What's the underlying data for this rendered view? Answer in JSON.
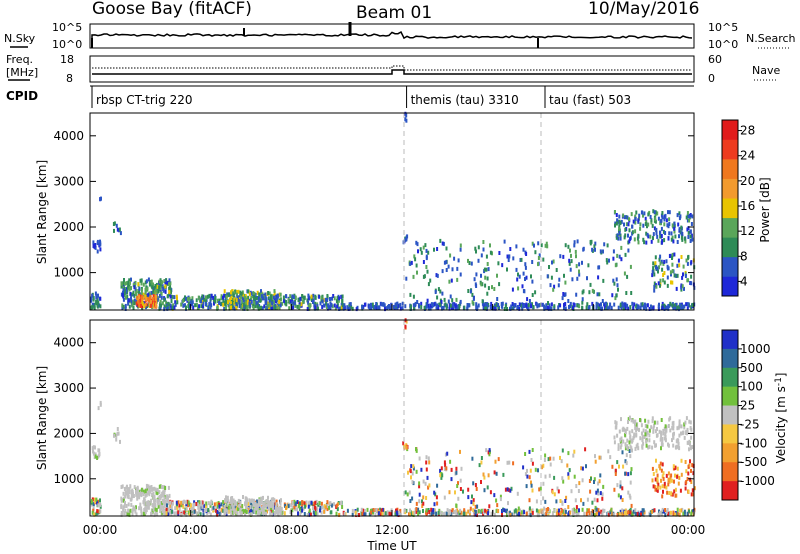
{
  "header": {
    "station": "Goose Bay (fitACF)",
    "beam": "Beam 01",
    "date": "10/May/2016"
  },
  "strip_labels": {
    "nsky": "N.Sky",
    "nsearch": "N.Search",
    "freq_line1": "Freq.",
    "freq_line2": "[MHz]",
    "nave": "Nave",
    "cpid": "CPID"
  },
  "strip_ticks": {
    "noise_left": [
      "10^5",
      "10^0"
    ],
    "noise_right": [
      "10^5",
      "10^0"
    ],
    "freq_left": [
      "18",
      "8"
    ],
    "freq_right": [
      "60",
      "0"
    ]
  },
  "cpid_segments": [
    {
      "label": "rbsp CT-trig 220",
      "start_hour": 0.0
    },
    {
      "label": "themis (tau) 3310",
      "start_hour": 12.5
    },
    {
      "label": "tau (fast) 503",
      "start_hour": 18.0
    }
  ],
  "colors": {
    "power": [
      "#1e28d8",
      "#2b55c4",
      "#2e8b57",
      "#5aa65a",
      "#e8c400",
      "#f29a2e",
      "#f0781e",
      "#ee3b1f",
      "#e11b1b"
    ],
    "velocity_pos": [
      "#2030c8",
      "#2f6a9a",
      "#3a9a5a",
      "#72c03c"
    ],
    "velocity_gray": "#c0c0c0",
    "velocity_neg": [
      "#f5c842",
      "#f2a030",
      "#ef6e22",
      "#e02020"
    ]
  },
  "chart_data": [
    {
      "type": "heatmap",
      "name": "power-panel",
      "ylabel": "Slant Range [km]",
      "colorbar_label": "Power [dB]",
      "colorbar_ticks": [
        "4",
        "8",
        "12",
        "16",
        "20",
        "24",
        "28"
      ],
      "yticks": [
        "1000",
        "2000",
        "3000",
        "4000"
      ],
      "ylim": [
        180,
        4500
      ],
      "xlim": [
        0,
        24
      ],
      "clusters": [
        {
          "t0": 0.0,
          "t1": 0.4,
          "r0": 200,
          "r1": 550,
          "n": 30,
          "vmin": 4,
          "vmax": 12
        },
        {
          "t0": 0.05,
          "t1": 0.4,
          "r0": 1450,
          "r1": 1700,
          "n": 14,
          "vmin": 4,
          "vmax": 8
        },
        {
          "t0": 0.3,
          "t1": 0.4,
          "r0": 2550,
          "r1": 2700,
          "n": 3,
          "vmin": 4,
          "vmax": 8
        },
        {
          "t0": 0.9,
          "t1": 1.2,
          "r0": 1800,
          "r1": 2100,
          "n": 8,
          "vmin": 4,
          "vmax": 12
        },
        {
          "t0": 1.2,
          "t1": 3.2,
          "r0": 200,
          "r1": 850,
          "n": 260,
          "vmin": 4,
          "vmax": 16
        },
        {
          "t0": 1.8,
          "t1": 2.6,
          "r0": 250,
          "r1": 500,
          "n": 70,
          "vmin": 18,
          "vmax": 30
        },
        {
          "t0": 3.0,
          "t1": 10.0,
          "r0": 200,
          "r1": 500,
          "n": 380,
          "vmin": 4,
          "vmax": 16
        },
        {
          "t0": 5.3,
          "t1": 7.6,
          "r0": 200,
          "r1": 600,
          "n": 170,
          "vmin": 6,
          "vmax": 18
        },
        {
          "t0": 10.0,
          "t1": 24.0,
          "r0": 200,
          "r1": 320,
          "n": 420,
          "vmin": 4,
          "vmax": 10
        },
        {
          "t0": 12.5,
          "t1": 21.5,
          "r0": 250,
          "r1": 1700,
          "n": 280,
          "vmin": 4,
          "vmax": 14
        },
        {
          "t0": 12.4,
          "t1": 12.6,
          "r0": 1650,
          "r1": 1800,
          "n": 8,
          "vmin": 4,
          "vmax": 10
        },
        {
          "t0": 12.45,
          "t1": 12.55,
          "r0": 4300,
          "r1": 4500,
          "n": 4,
          "vmin": 4,
          "vmax": 8
        },
        {
          "t0": 20.8,
          "t1": 23.9,
          "r0": 1650,
          "r1": 2350,
          "n": 200,
          "vmin": 4,
          "vmax": 14
        },
        {
          "t0": 22.3,
          "t1": 24.0,
          "r0": 600,
          "r1": 1400,
          "n": 90,
          "vmin": 4,
          "vmax": 18
        }
      ]
    },
    {
      "type": "heatmap",
      "name": "velocity-panel",
      "ylabel": "Slant Range [km]",
      "colorbar_label": "Velocity [m s^-1]",
      "colorbar_ticks": [
        "1000",
        "500",
        "100",
        "25",
        "-25",
        "-100",
        "-500",
        "-1000"
      ],
      "yticks": [
        "1000",
        "2000",
        "3000",
        "4000"
      ],
      "ylim": [
        180,
        4500
      ],
      "xlim": [
        0,
        24
      ],
      "xlabel": "Time UT",
      "xticks": [
        "00:00",
        "04:00",
        "08:00",
        "12:00",
        "16:00",
        "20:00",
        "00:00"
      ],
      "clusters": [
        {
          "t0": 0.0,
          "t1": 0.4,
          "r0": 200,
          "r1": 550,
          "n": 30,
          "kind": "mixed"
        },
        {
          "t0": 0.05,
          "t1": 0.4,
          "r0": 1450,
          "r1": 1700,
          "n": 14,
          "kind": "gray"
        },
        {
          "t0": 0.3,
          "t1": 0.4,
          "r0": 2550,
          "r1": 2700,
          "n": 3,
          "kind": "gray"
        },
        {
          "t0": 0.9,
          "t1": 1.2,
          "r0": 1800,
          "r1": 2100,
          "n": 8,
          "kind": "gray"
        },
        {
          "t0": 1.2,
          "t1": 3.2,
          "r0": 200,
          "r1": 850,
          "n": 260,
          "kind": "gray"
        },
        {
          "t0": 3.0,
          "t1": 10.0,
          "r0": 200,
          "r1": 500,
          "n": 380,
          "kind": "mixed"
        },
        {
          "t0": 5.3,
          "t1": 7.6,
          "r0": 200,
          "r1": 600,
          "n": 170,
          "kind": "gray"
        },
        {
          "t0": 10.0,
          "t1": 24.0,
          "r0": 200,
          "r1": 320,
          "n": 420,
          "kind": "mixed"
        },
        {
          "t0": 12.5,
          "t1": 21.5,
          "r0": 250,
          "r1": 1700,
          "n": 280,
          "kind": "mixed"
        },
        {
          "t0": 12.4,
          "t1": 12.6,
          "r0": 1650,
          "r1": 1800,
          "n": 8,
          "kind": "neg"
        },
        {
          "t0": 12.45,
          "t1": 12.55,
          "r0": 4300,
          "r1": 4500,
          "n": 4,
          "kind": "neg"
        },
        {
          "t0": 20.8,
          "t1": 23.9,
          "r0": 1650,
          "r1": 2350,
          "n": 200,
          "kind": "gray"
        },
        {
          "t0": 22.3,
          "t1": 24.0,
          "r0": 600,
          "r1": 1400,
          "n": 90,
          "kind": "neg"
        }
      ]
    }
  ]
}
